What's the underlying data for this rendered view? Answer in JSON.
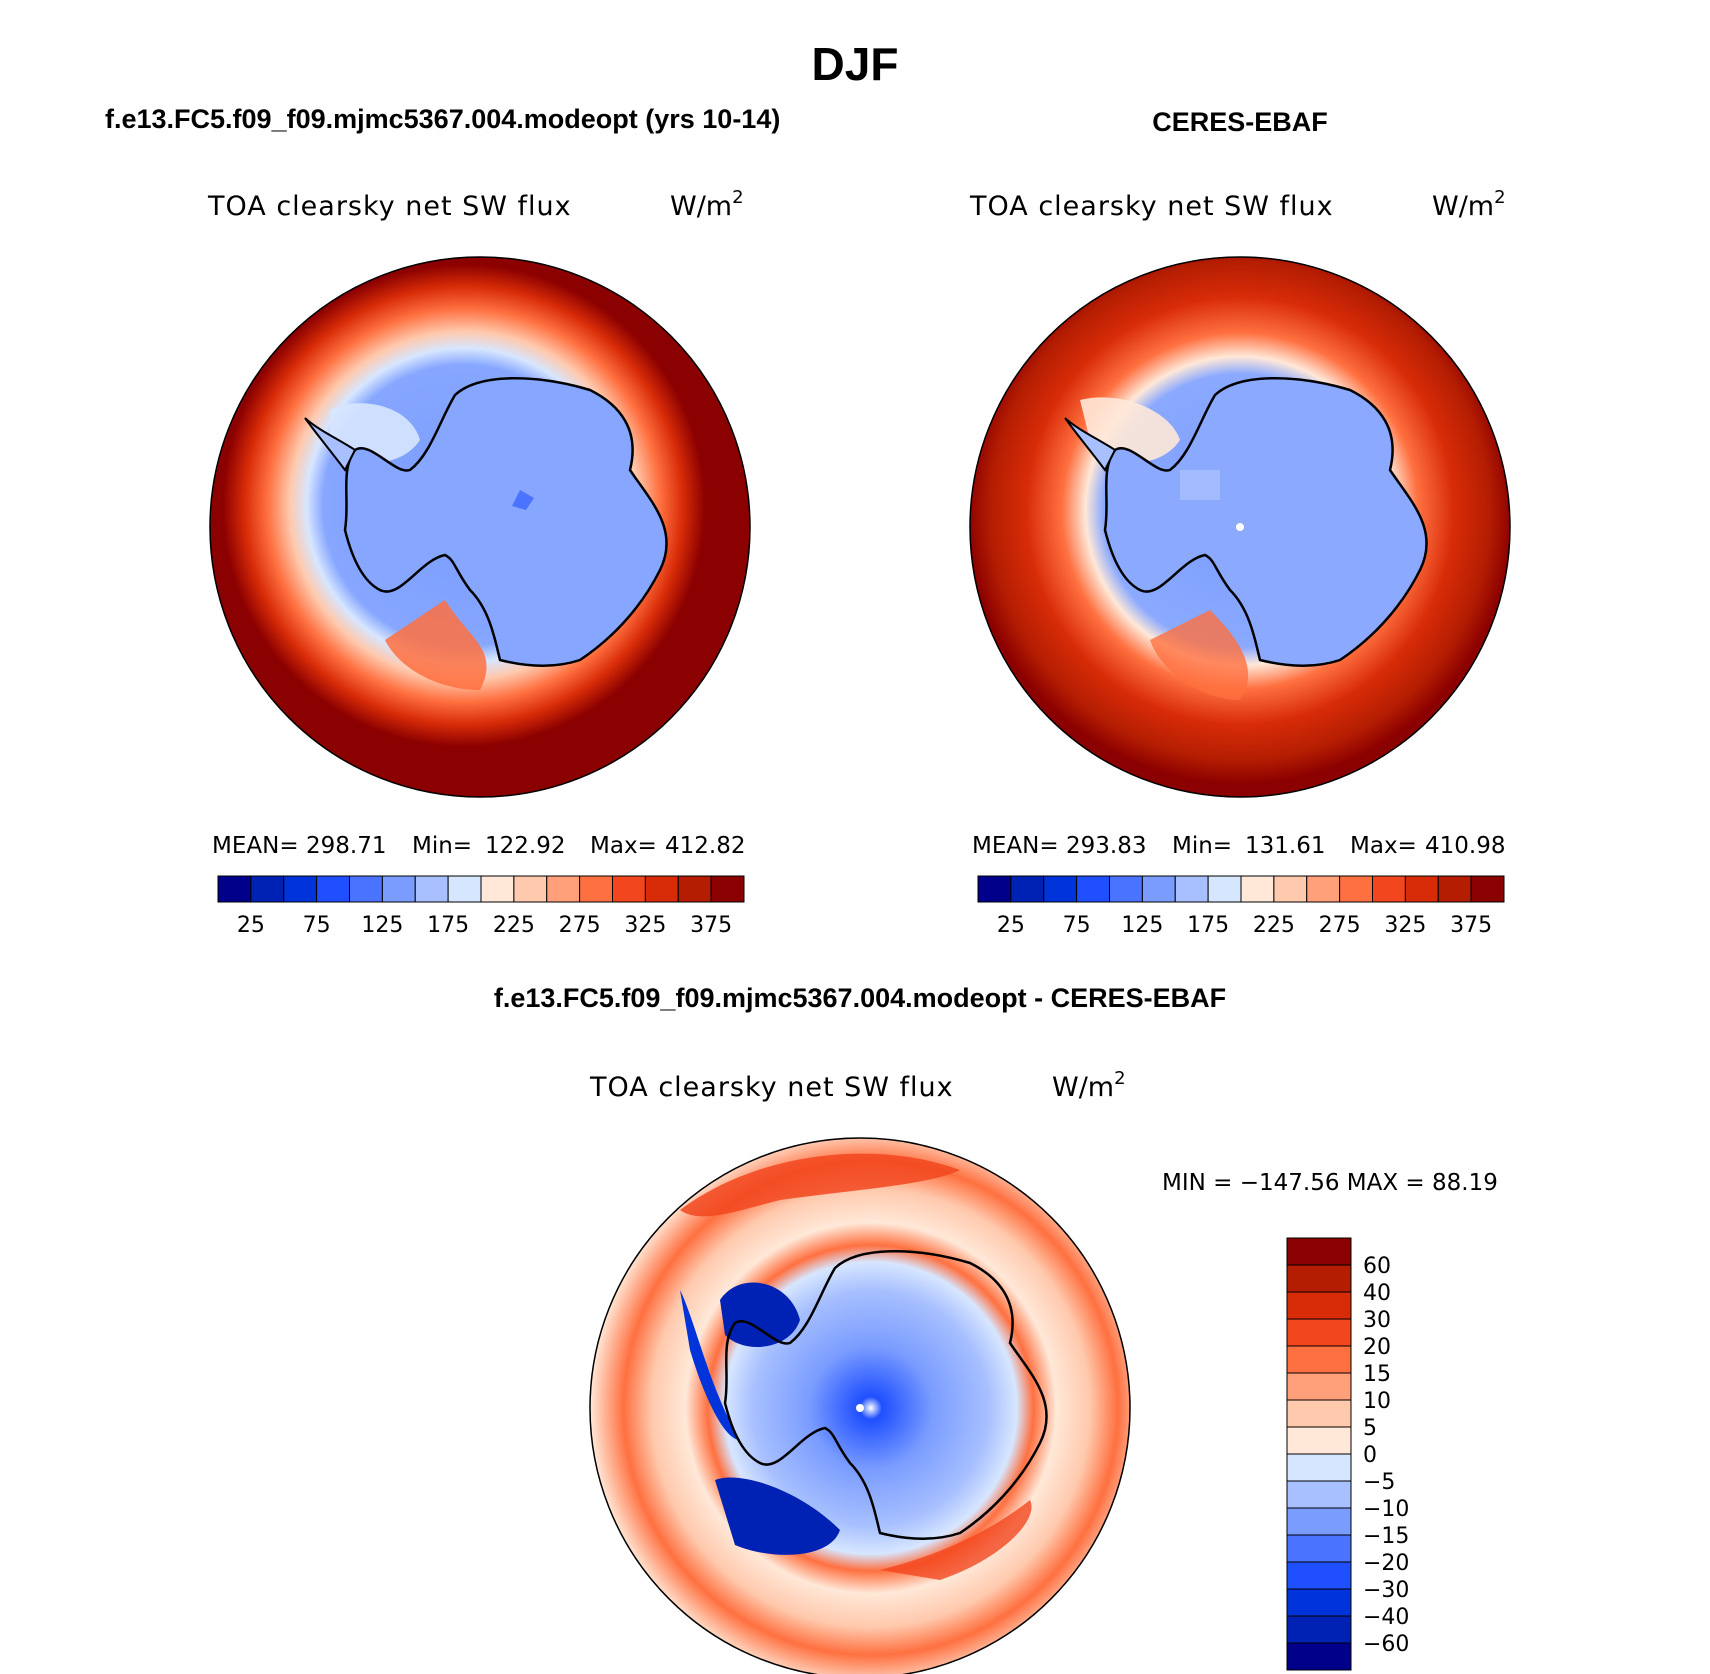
{
  "main_title": "DJF",
  "colors": {
    "abs_scale": [
      "#00008b",
      "#0022b4",
      "#0033d9",
      "#1f4fff",
      "#4a74ff",
      "#7a9cff",
      "#a8c0ff",
      "#d7e6ff",
      "#ffe8d8",
      "#ffc9ad",
      "#ffa07a",
      "#ff7040",
      "#f2461e",
      "#d82c08",
      "#b41d02",
      "#8b0000"
    ],
    "diff_scale": [
      "#00008b",
      "#0022b4",
      "#0033d9",
      "#1f4fff",
      "#4a74ff",
      "#7a9cff",
      "#a8c0ff",
      "#d7e6ff",
      "#ffe8d8",
      "#ffc9ad",
      "#ffa07a",
      "#ff7040",
      "#f2461e",
      "#d82c08",
      "#b41d02",
      "#8b0000"
    ],
    "ocean_dark": "#8b0000",
    "land_ice": "#7a9cff"
  },
  "panels": {
    "model": {
      "case_title": "f.e13.FC5.f09_f09.mjmc5367.004.modeopt (yrs 10-14)",
      "variable": "TOA clearsky net SW flux",
      "units": "W/m",
      "units_sup": "2",
      "stats": {
        "mean_label": "MEAN=",
        "mean": "298.71",
        "min_label": "Min=",
        "min": "122.92",
        "max_label": "Max=",
        "max": "412.82"
      },
      "colorbar_ticks": [
        "25",
        "75",
        "125",
        "175",
        "225",
        "275",
        "325",
        "375"
      ]
    },
    "obs": {
      "case_title": "CERES-EBAF",
      "variable": "TOA clearsky net SW flux",
      "units": "W/m",
      "units_sup": "2",
      "stats": {
        "mean_label": "MEAN=",
        "mean": "293.83",
        "min_label": "Min=",
        "min": "131.61",
        "max_label": "Max=",
        "max": "410.98"
      },
      "colorbar_ticks": [
        "25",
        "75",
        "125",
        "175",
        "225",
        "275",
        "325",
        "375"
      ]
    },
    "diff": {
      "case_title": "f.e13.FC5.f09_f09.mjmc5367.004.modeopt - CERES-EBAF",
      "variable": "TOA clearsky net SW flux",
      "units": "W/m",
      "units_sup": "2",
      "minmax": "MIN = −147.56 MAX =  88.19",
      "colorbar_labels": [
        "60",
        "40",
        "30",
        "20",
        "15",
        "10",
        "5",
        "0",
        "−5",
        "−10",
        "−15",
        "−20",
        "−30",
        "−40",
        "−60"
      ]
    }
  }
}
